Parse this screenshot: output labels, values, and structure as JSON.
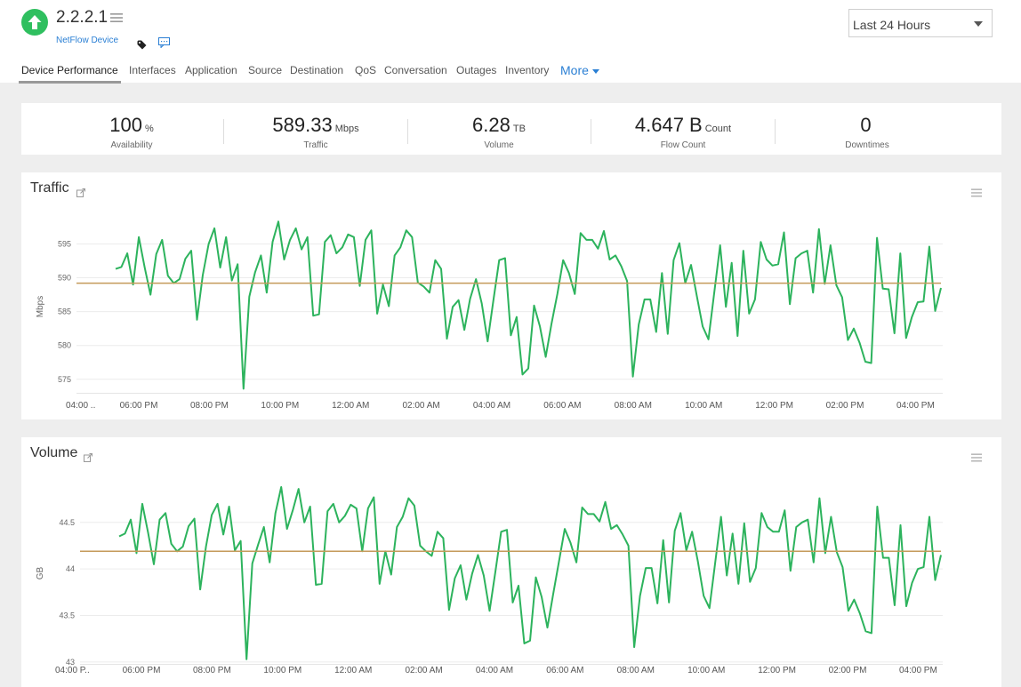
{
  "header": {
    "title": "2.2.2.1",
    "device_type": "NetFlow Device",
    "time_range": "Last 24 Hours",
    "status_color": "#2fbf5f"
  },
  "tabs": [
    {
      "label": "Device Performance",
      "active": true
    },
    {
      "label": "Interfaces"
    },
    {
      "label": "Application"
    },
    {
      "label": "Source"
    },
    {
      "label": "Destination"
    },
    {
      "label": "QoS"
    },
    {
      "label": "Conversation"
    },
    {
      "label": "Outages"
    },
    {
      "label": "Inventory"
    },
    {
      "label": "More"
    }
  ],
  "summary": [
    {
      "value": "100",
      "unit": "%",
      "label": "Availability"
    },
    {
      "value": "589.33",
      "unit": "Mbps",
      "label": "Traffic"
    },
    {
      "value": "6.28",
      "unit": "TB",
      "label": "Volume"
    },
    {
      "value": "4.647 B",
      "unit": "Count",
      "label": "Flow Count"
    },
    {
      "value": "0",
      "unit": "",
      "label": "Downtimes"
    }
  ],
  "chart_data": [
    {
      "type": "line",
      "title": "Traffic",
      "ylabel": "Mbps",
      "ylim": [
        573,
        599
      ],
      "yticks": [
        575,
        580,
        585,
        590,
        595
      ],
      "xticks": [
        "04:00 ..",
        "06:00 PM",
        "08:00 PM",
        "10:00 PM",
        "12:00 AM",
        "02:00 AM",
        "04:00 AM",
        "06:00 AM",
        "08:00 AM",
        "10:00 AM",
        "12:00 PM",
        "02:00 PM",
        "04:00 PM"
      ],
      "average": 589.2,
      "line_color": "#2db35d",
      "average_color": "#c49a5a",
      "series": [
        {
          "values": [
            591.3,
            591.6,
            593.6,
            589,
            596,
            591.5,
            587.5,
            593.5,
            595.6,
            590.3,
            589.2,
            589.8,
            592.8,
            594,
            583.8,
            590.4,
            595,
            597.3,
            591.5,
            596,
            589.6,
            592,
            573.6,
            587.2,
            590.8,
            593.3,
            587.8,
            595.3,
            598.3,
            592.7,
            595.6,
            597.3,
            594.2,
            596,
            584.4,
            584.6,
            595.3,
            596.3,
            593.6,
            594.5,
            596.4,
            596,
            588.8,
            595.6,
            597,
            584.7,
            589,
            585.8,
            593.3,
            594.5,
            597,
            596,
            589.3,
            588.7,
            587.8,
            592.6,
            591.3,
            581,
            585.7,
            586.7,
            582.3,
            586.9,
            589.8,
            586.2,
            580.6,
            586.7,
            592.6,
            592.9,
            581.5,
            584.2,
            575.7,
            576.6,
            585.9,
            582.8,
            578.3,
            583.2,
            587.6,
            592.6,
            590.7,
            587.6,
            596.6,
            595.6,
            595.6,
            594.3,
            596.9,
            592.7,
            593.3,
            591.7,
            589.5,
            575.4,
            583.1,
            586.8,
            586.8,
            582,
            590.7,
            581.7,
            592.6,
            595.1,
            589.2,
            591.9,
            587.3,
            582.8,
            580.9,
            587.8,
            594.8,
            585.7,
            592.2,
            581.4,
            594,
            584.7,
            586.8,
            595.3,
            592.7,
            591.8,
            592,
            596.7,
            586.1,
            592.9,
            593.6,
            594,
            587.8,
            597.2,
            589.1,
            594.8,
            588.9,
            587.1,
            580.8,
            582.5,
            580.4,
            577.6,
            577.4,
            595.9,
            588.4,
            588.3,
            581.8,
            593.6,
            581.1,
            584.2,
            586.4,
            586.5,
            594.6,
            585.1,
            588.5
          ]
        }
      ]
    },
    {
      "type": "line",
      "title": "Volume",
      "ylabel": "GB",
      "ylim": [
        42.98,
        44.88
      ],
      "yticks": [
        "43",
        "43.5",
        "44",
        "44.5"
      ],
      "xticks": [
        "04:00 P..",
        "06:00 PM",
        "08:00 PM",
        "10:00 PM",
        "12:00 AM",
        "02:00 AM",
        "04:00 AM",
        "06:00 AM",
        "08:00 AM",
        "10:00 AM",
        "12:00 PM",
        "02:00 PM",
        "04:00 PM"
      ],
      "average": 44.19,
      "line_color": "#2db35d",
      "average_color": "#c49a5a",
      "series": [
        {
          "values": [
            44.35,
            44.38,
            44.53,
            44.17,
            44.7,
            44.39,
            44.05,
            44.53,
            44.6,
            44.27,
            44.19,
            44.24,
            44.46,
            44.54,
            43.78,
            44.24,
            44.58,
            44.7,
            44.37,
            44.67,
            44.2,
            44.3,
            43.03,
            44.06,
            44.26,
            44.45,
            44.07,
            44.6,
            44.88,
            44.43,
            44.63,
            44.86,
            44.5,
            44.67,
            43.83,
            43.84,
            44.62,
            44.7,
            44.5,
            44.57,
            44.69,
            44.65,
            44.19,
            44.65,
            44.77,
            43.84,
            44.19,
            43.94,
            44.45,
            44.56,
            44.76,
            44.68,
            44.25,
            44.19,
            44.14,
            44.4,
            44.33,
            43.56,
            43.9,
            44.04,
            43.67,
            43.95,
            44.15,
            43.93,
            43.55,
            43.97,
            44.4,
            44.42,
            43.64,
            43.82,
            43.2,
            43.23,
            43.91,
            43.7,
            43.37,
            43.73,
            44.08,
            44.43,
            44.28,
            44.07,
            44.66,
            44.59,
            44.59,
            44.51,
            44.72,
            44.43,
            44.47,
            44.37,
            44.25,
            43.16,
            43.71,
            44.01,
            44.01,
            43.63,
            44.31,
            43.64,
            44.41,
            44.6,
            44.2,
            44.4,
            44.08,
            43.71,
            43.58,
            44.07,
            44.56,
            43.93,
            44.38,
            43.84,
            44.49,
            43.86,
            44.01,
            44.6,
            44.45,
            44.4,
            44.4,
            44.63,
            43.98,
            44.45,
            44.5,
            44.53,
            44.07,
            44.76,
            44.17,
            44.56,
            44.18,
            44.02,
            43.55,
            43.67,
            43.52,
            43.33,
            43.31,
            44.67,
            44.12,
            44.12,
            43.61,
            44.47,
            43.6,
            43.85,
            44,
            44.02,
            44.56,
            43.88,
            44.15
          ]
        }
      ]
    }
  ]
}
